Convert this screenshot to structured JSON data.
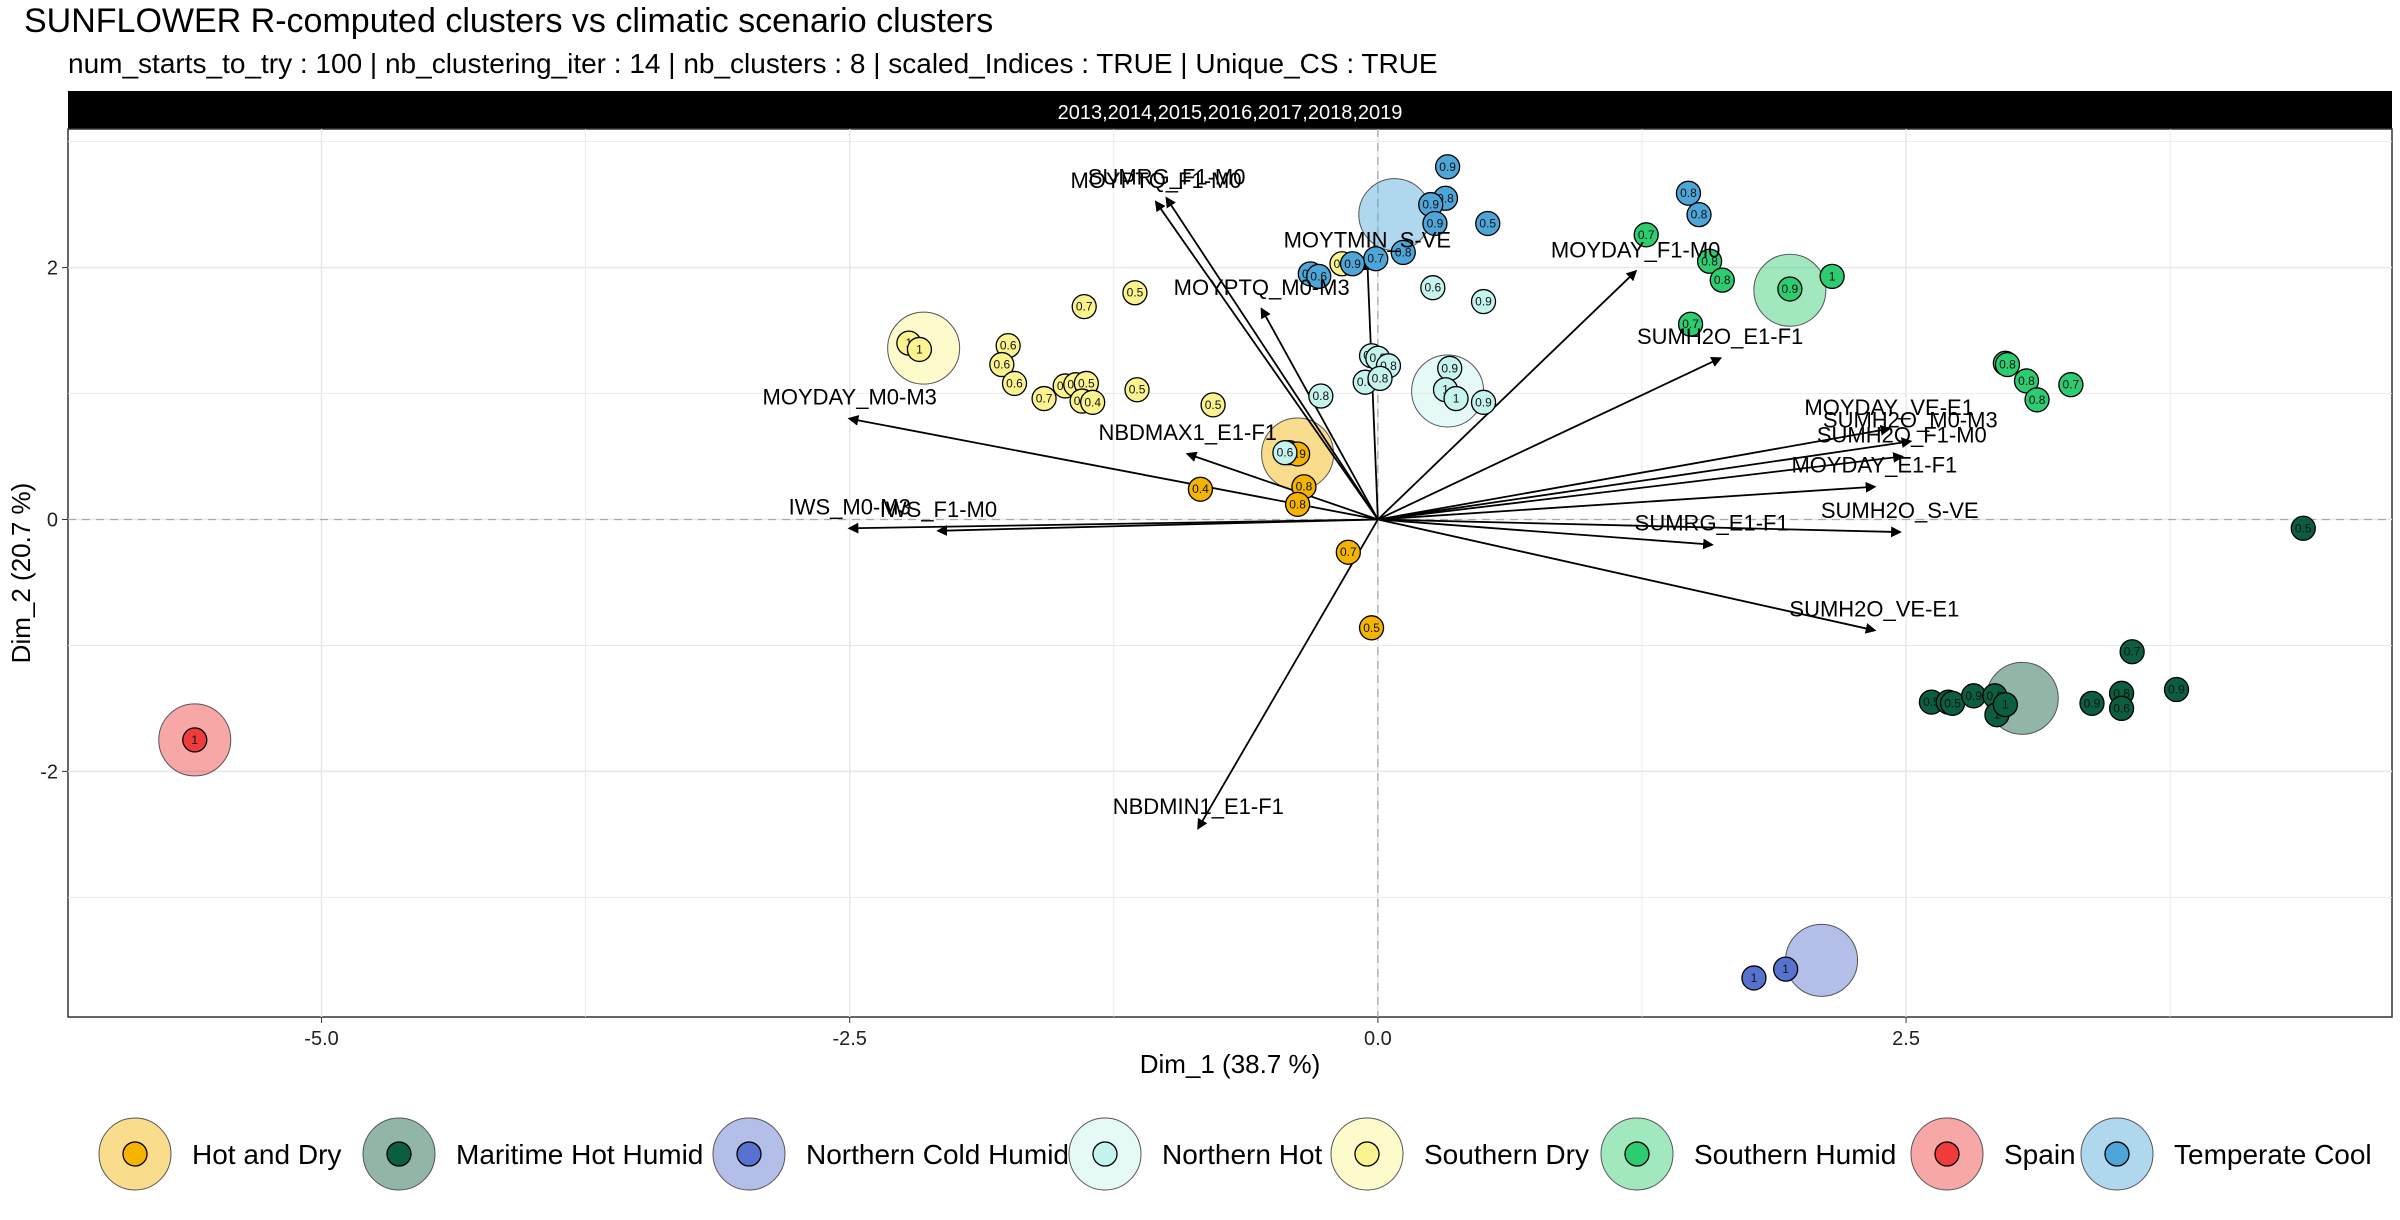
{
  "title": "SUNFLOWER R-computed clusters vs climatic scenario clusters",
  "subtitle": "num_starts_to_try : 100 | nb_clustering_iter : 14 | nb_clusters : 8 | scaled_Indices : TRUE | Unique_CS : TRUE",
  "chart_data": {
    "type": "scatter",
    "facet_label": "2013,2014,2015,2016,2017,2018,2019",
    "xlabel": "Dim_1 (38.7 %)",
    "ylabel": "Dim_2 (20.7 %)",
    "xlim": [
      -6.2,
      4.8
    ],
    "ylim": [
      -3.95,
      3.1
    ],
    "xticks": [
      -5.0,
      -2.5,
      0.0,
      2.5
    ],
    "xtick_labels": [
      "-5.0",
      "-2.5",
      "0.0",
      "2.5"
    ],
    "yticks": [
      -2,
      0,
      2
    ],
    "ytick_labels": [
      "-2",
      "0",
      "2"
    ],
    "grid": true,
    "legend_position": "bottom",
    "clusters": [
      {
        "name": "Hot and Dry",
        "color": "#f4b400"
      },
      {
        "name": "Maritime Hot Humid",
        "color": "#0b5e3f"
      },
      {
        "name": "Northern Cold Humid",
        "color": "#5872cf"
      },
      {
        "name": "Northern Hot",
        "color": "#c5f3ee"
      },
      {
        "name": "Southern Dry",
        "color": "#fbf38e"
      },
      {
        "name": "Southern Humid",
        "color": "#2ecc71"
      },
      {
        "name": "Spain",
        "color": "#ef3b3b"
      },
      {
        "name": "Temperate Cool",
        "color": "#4ea6d8"
      }
    ],
    "centroids": [
      {
        "cluster": 0,
        "x": -0.38,
        "y": 0.52
      },
      {
        "cluster": 1,
        "x": 3.05,
        "y": -1.42
      },
      {
        "cluster": 2,
        "x": 2.1,
        "y": -3.5
      },
      {
        "cluster": 3,
        "x": 0.33,
        "y": 1.02
      },
      {
        "cluster": 4,
        "x": -2.15,
        "y": 1.36
      },
      {
        "cluster": 5,
        "x": 1.95,
        "y": 1.82
      },
      {
        "cluster": 6,
        "x": -5.6,
        "y": -1.75
      },
      {
        "cluster": 7,
        "x": 0.08,
        "y": 2.42
      }
    ],
    "vectors": [
      {
        "label": "SUMRG_F1-M0",
        "x": -1.0,
        "y": 2.55
      },
      {
        "label": "MOYPTQ_F1-M0",
        "x": -1.05,
        "y": 2.52
      },
      {
        "label": "MOYTMIN_S-VE",
        "x": -0.05,
        "y": 2.05
      },
      {
        "label": "MOYPTQ_M0-M3",
        "x": -0.55,
        "y": 1.67
      },
      {
        "label": "MOYDAY_M0-M3",
        "x": -2.5,
        "y": 0.8
      },
      {
        "label": "NBDMAX1_E1-F1",
        "x": -0.9,
        "y": 0.52
      },
      {
        "label": "IWS_M0-M3",
        "x": -2.5,
        "y": -0.07
      },
      {
        "label": "IWS_F1-M0",
        "x": -2.08,
        "y": -0.09
      },
      {
        "label": "NBDMIN1_E1-F1",
        "x": -0.85,
        "y": -2.45
      },
      {
        "label": "MOYDAY_F1-M0",
        "x": 1.22,
        "y": 1.97
      },
      {
        "label": "SUMH2O_E1-F1",
        "x": 1.62,
        "y": 1.28
      },
      {
        "label": "MOYDAY_VE-E1",
        "x": 2.42,
        "y": 0.72
      },
      {
        "label": "SUMH2O_M0-M3",
        "x": 2.52,
        "y": 0.62
      },
      {
        "label": "SUMH2O_F1-M0",
        "x": 2.48,
        "y": 0.5
      },
      {
        "label": "MOYDAY_E1-F1",
        "x": 2.35,
        "y": 0.26
      },
      {
        "label": "SUMRG_E1-F1",
        "x": 1.58,
        "y": -0.2
      },
      {
        "label": "SUMH2O_S-VE",
        "x": 2.47,
        "y": -0.1
      },
      {
        "label": "SUMH2O_VE-E1",
        "x": 2.35,
        "y": -0.88
      }
    ],
    "points": [
      {
        "cluster": 0,
        "x": -0.42,
        "y": 0.53,
        "v": "0.9"
      },
      {
        "cluster": 0,
        "x": -0.38,
        "y": 0.52,
        "v": "0.9"
      },
      {
        "cluster": 0,
        "x": -0.35,
        "y": 0.26,
        "v": "0.8"
      },
      {
        "cluster": 0,
        "x": -0.38,
        "y": 0.12,
        "v": "0.8"
      },
      {
        "cluster": 0,
        "x": -0.84,
        "y": 0.24,
        "v": "0.4"
      },
      {
        "cluster": 0,
        "x": -0.14,
        "y": -0.26,
        "v": "0.7"
      },
      {
        "cluster": 0,
        "x": -0.03,
        "y": -0.86,
        "v": "0.5"
      },
      {
        "cluster": 1,
        "x": 2.62,
        "y": -1.45,
        "v": "0.5"
      },
      {
        "cluster": 1,
        "x": 2.7,
        "y": -1.45,
        "v": "0.6"
      },
      {
        "cluster": 1,
        "x": 2.72,
        "y": -1.46,
        "v": "0.5"
      },
      {
        "cluster": 1,
        "x": 2.82,
        "y": -1.4,
        "v": "0.9"
      },
      {
        "cluster": 1,
        "x": 2.92,
        "y": -1.4,
        "v": "0.9"
      },
      {
        "cluster": 1,
        "x": 2.93,
        "y": -1.55,
        "v": "1"
      },
      {
        "cluster": 1,
        "x": 2.97,
        "y": -1.47,
        "v": "1"
      },
      {
        "cluster": 1,
        "x": 3.38,
        "y": -1.46,
        "v": "0.9"
      },
      {
        "cluster": 1,
        "x": 3.52,
        "y": -1.38,
        "v": "0.8"
      },
      {
        "cluster": 1,
        "x": 3.52,
        "y": -1.5,
        "v": "0.6"
      },
      {
        "cluster": 1,
        "x": 3.57,
        "y": -1.05,
        "v": "0.7"
      },
      {
        "cluster": 1,
        "x": 3.78,
        "y": -1.35,
        "v": "0.9"
      },
      {
        "cluster": 1,
        "x": 4.38,
        "y": -0.07,
        "v": "0.5"
      },
      {
        "cluster": 2,
        "x": 1.78,
        "y": -3.64,
        "v": "1"
      },
      {
        "cluster": 2,
        "x": 1.93,
        "y": -3.57,
        "v": "1"
      },
      {
        "cluster": 3,
        "x": -0.44,
        "y": 0.53,
        "v": "0.6"
      },
      {
        "cluster": 3,
        "x": -0.27,
        "y": 0.98,
        "v": "0.8"
      },
      {
        "cluster": 3,
        "x": -0.03,
        "y": 1.3,
        "v": "0.8"
      },
      {
        "cluster": 3,
        "x": 0.0,
        "y": 1.28,
        "v": "0.8"
      },
      {
        "cluster": 3,
        "x": 0.05,
        "y": 1.22,
        "v": "0.8"
      },
      {
        "cluster": 3,
        "x": -0.06,
        "y": 1.09,
        "v": "0.6"
      },
      {
        "cluster": 3,
        "x": 0.01,
        "y": 1.12,
        "v": "0.8"
      },
      {
        "cluster": 3,
        "x": 0.26,
        "y": 1.84,
        "v": "0.6"
      },
      {
        "cluster": 3,
        "x": 0.5,
        "y": 1.73,
        "v": "0.9"
      },
      {
        "cluster": 3,
        "x": 0.34,
        "y": 1.2,
        "v": "0.9"
      },
      {
        "cluster": 3,
        "x": 0.32,
        "y": 1.03,
        "v": "1"
      },
      {
        "cluster": 3,
        "x": 0.37,
        "y": 0.96,
        "v": "1"
      },
      {
        "cluster": 3,
        "x": 0.5,
        "y": 0.93,
        "v": "0.9"
      },
      {
        "cluster": 4,
        "x": -2.22,
        "y": 1.4,
        "v": "1"
      },
      {
        "cluster": 4,
        "x": -2.17,
        "y": 1.35,
        "v": "1"
      },
      {
        "cluster": 4,
        "x": -1.75,
        "y": 1.38,
        "v": "0.6"
      },
      {
        "cluster": 4,
        "x": -1.78,
        "y": 1.23,
        "v": "0.6"
      },
      {
        "cluster": 4,
        "x": -1.72,
        "y": 1.08,
        "v": "0.6"
      },
      {
        "cluster": 4,
        "x": -1.58,
        "y": 0.96,
        "v": "0.7"
      },
      {
        "cluster": 4,
        "x": -1.48,
        "y": 1.06,
        "v": "0.5"
      },
      {
        "cluster": 4,
        "x": -1.43,
        "y": 1.07,
        "v": "0.5"
      },
      {
        "cluster": 4,
        "x": -1.38,
        "y": 1.08,
        "v": "0.5"
      },
      {
        "cluster": 4,
        "x": -1.4,
        "y": 0.94,
        "v": "0.4"
      },
      {
        "cluster": 4,
        "x": -1.35,
        "y": 0.93,
        "v": "0.4"
      },
      {
        "cluster": 4,
        "x": -1.39,
        "y": 1.69,
        "v": "0.7"
      },
      {
        "cluster": 4,
        "x": -1.15,
        "y": 1.8,
        "v": "0.5"
      },
      {
        "cluster": 4,
        "x": -1.14,
        "y": 1.03,
        "v": "0.5"
      },
      {
        "cluster": 4,
        "x": -0.78,
        "y": 0.91,
        "v": "0.5"
      },
      {
        "cluster": 4,
        "x": -0.17,
        "y": 2.03,
        "v": "0.7"
      },
      {
        "cluster": 5,
        "x": 1.95,
        "y": 1.83,
        "v": "0.9"
      },
      {
        "cluster": 5,
        "x": 2.15,
        "y": 1.93,
        "v": "1"
      },
      {
        "cluster": 5,
        "x": 1.27,
        "y": 2.26,
        "v": "0.7"
      },
      {
        "cluster": 5,
        "x": 1.57,
        "y": 2.05,
        "v": "0.8"
      },
      {
        "cluster": 5,
        "x": 1.63,
        "y": 1.9,
        "v": "0.8"
      },
      {
        "cluster": 5,
        "x": 1.48,
        "y": 1.55,
        "v": "0.7"
      },
      {
        "cluster": 5,
        "x": 2.97,
        "y": 1.24,
        "v": "0.8"
      },
      {
        "cluster": 5,
        "x": 2.98,
        "y": 1.23,
        "v": "0.8"
      },
      {
        "cluster": 5,
        "x": 3.07,
        "y": 1.1,
        "v": "0.8"
      },
      {
        "cluster": 5,
        "x": 3.12,
        "y": 0.95,
        "v": "0.8"
      },
      {
        "cluster": 5,
        "x": 3.28,
        "y": 1.07,
        "v": "0.7"
      },
      {
        "cluster": 6,
        "x": -5.6,
        "y": -1.75,
        "v": "1"
      },
      {
        "cluster": 7,
        "x": 0.33,
        "y": 2.8,
        "v": "0.9"
      },
      {
        "cluster": 7,
        "x": 0.32,
        "y": 2.55,
        "v": "0.8"
      },
      {
        "cluster": 7,
        "x": 0.25,
        "y": 2.5,
        "v": "0.9"
      },
      {
        "cluster": 7,
        "x": 0.27,
        "y": 2.35,
        "v": "0.9"
      },
      {
        "cluster": 7,
        "x": 0.52,
        "y": 2.35,
        "v": "0.5"
      },
      {
        "cluster": 7,
        "x": 0.12,
        "y": 2.12,
        "v": "0.8"
      },
      {
        "cluster": 7,
        "x": -0.01,
        "y": 2.07,
        "v": "0.7"
      },
      {
        "cluster": 7,
        "x": -0.12,
        "y": 2.03,
        "v": "0.9"
      },
      {
        "cluster": 7,
        "x": -0.32,
        "y": 1.95,
        "v": "0.9"
      },
      {
        "cluster": 7,
        "x": -0.28,
        "y": 1.93,
        "v": "0.6"
      },
      {
        "cluster": 7,
        "x": 1.47,
        "y": 2.59,
        "v": "0.8"
      },
      {
        "cluster": 7,
        "x": 1.52,
        "y": 2.42,
        "v": "0.8"
      }
    ]
  }
}
